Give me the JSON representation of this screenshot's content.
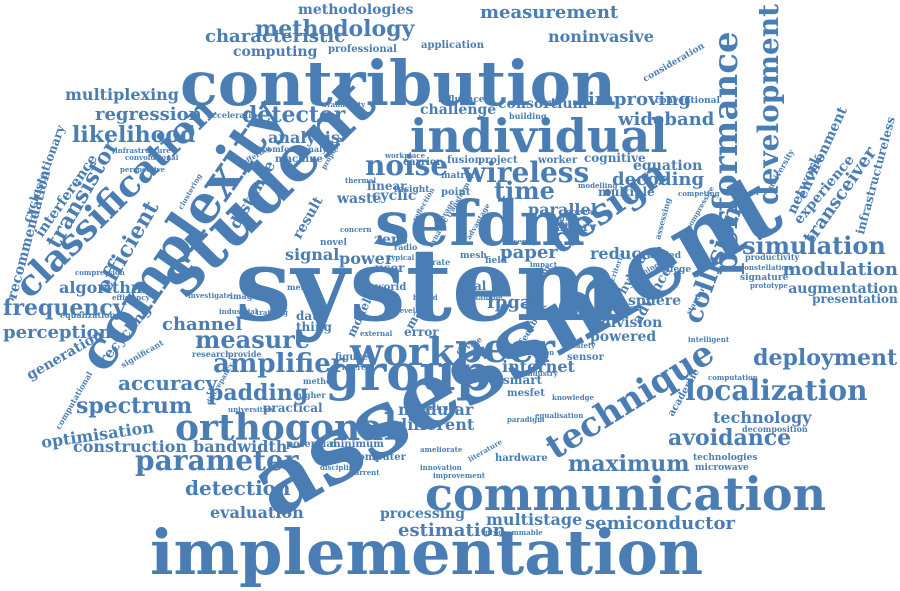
{
  "color": "#4a7db4",
  "words": [
    {
      "text": "assessment",
      "weight": 100
    },
    {
      "text": "system",
      "weight": 96
    },
    {
      "text": "implementation",
      "weight": 88
    },
    {
      "text": "contribution",
      "weight": 84
    },
    {
      "text": "student",
      "weight": 80
    },
    {
      "text": "communication",
      "weight": 76
    },
    {
      "text": "individual",
      "weight": 72
    },
    {
      "text": "complexity",
      "weight": 70
    },
    {
      "text": "sefdm",
      "weight": 70
    },
    {
      "text": "group",
      "weight": 66
    },
    {
      "text": "work",
      "weight": 62
    },
    {
      "text": "peer",
      "weight": 62
    },
    {
      "text": "technique",
      "weight": 58
    },
    {
      "text": "performance",
      "weight": 56
    },
    {
      "text": "classification",
      "weight": 56
    },
    {
      "text": "orthogonal",
      "weight": 54
    },
    {
      "text": "development",
      "weight": 52
    },
    {
      "text": "design",
      "weight": 52
    },
    {
      "text": "collision",
      "weight": 46
    },
    {
      "text": "noise",
      "weight": 46
    },
    {
      "text": "wireless",
      "weight": 44
    },
    {
      "text": "parameter",
      "weight": 42
    },
    {
      "text": "localization",
      "weight": 42
    },
    {
      "text": "methodology",
      "weight": 38
    },
    {
      "text": "amplifier",
      "weight": 38
    },
    {
      "text": "simulation",
      "weight": 38
    },
    {
      "text": "frequency",
      "weight": 36
    },
    {
      "text": "measure",
      "weight": 36
    },
    {
      "text": "deployment",
      "weight": 34
    },
    {
      "text": "maximum",
      "weight": 34
    },
    {
      "text": "avoidance",
      "weight": 34
    },
    {
      "text": "detector",
      "weight": 34
    },
    {
      "text": "likelihood",
      "weight": 34
    },
    {
      "text": "spectrum",
      "weight": 34
    },
    {
      "text": "time",
      "weight": 34
    },
    {
      "text": "efficient",
      "weight": 32
    },
    {
      "text": "transistor",
      "weight": 32
    },
    {
      "text": "padding",
      "weight": 30
    },
    {
      "text": "accuracy",
      "weight": 30
    },
    {
      "text": "semiconductor",
      "weight": 30
    },
    {
      "text": "detection",
      "weight": 30
    },
    {
      "text": "characteristic",
      "weight": 28
    },
    {
      "text": "measurement",
      "weight": 28
    },
    {
      "text": "perception",
      "weight": 28
    },
    {
      "text": "improving",
      "weight": 28
    },
    {
      "text": "wideband",
      "weight": 28
    },
    {
      "text": "modulation",
      "weight": 28
    },
    {
      "text": "transceiver",
      "weight": 28
    },
    {
      "text": "regression",
      "weight": 26
    },
    {
      "text": "multiplexing",
      "weight": 26
    },
    {
      "text": "channel",
      "weight": 26
    },
    {
      "text": "estimation",
      "weight": 26
    },
    {
      "text": "evaluation",
      "weight": 26
    },
    {
      "text": "technology",
      "weight": 26
    },
    {
      "text": "construction",
      "weight": 24
    },
    {
      "text": "bandwidth",
      "weight": 24
    },
    {
      "text": "optimisation",
      "weight": 24
    },
    {
      "text": "generation",
      "weight": 24
    },
    {
      "text": "interference",
      "weight": 24
    },
    {
      "text": "recommendation",
      "weight": 24
    },
    {
      "text": "cyclostationary",
      "weight": 22
    },
    {
      "text": "noninvasive",
      "weight": 24
    },
    {
      "text": "methodologies",
      "weight": 22
    },
    {
      "text": "decoding",
      "weight": 24
    },
    {
      "text": "equation",
      "weight": 22
    },
    {
      "text": "analysis",
      "weight": 22
    },
    {
      "text": "distance",
      "weight": 22
    },
    {
      "text": "computing",
      "weight": 20
    },
    {
      "text": "algorithm",
      "weight": 20
    },
    {
      "text": "fpga",
      "weight": 22
    },
    {
      "text": "internet",
      "weight": 20
    },
    {
      "text": "multistage",
      "weight": 20
    },
    {
      "text": "modular",
      "weight": 20
    },
    {
      "text": "different",
      "weight": 20
    },
    {
      "text": "processing",
      "weight": 18
    },
    {
      "text": "parallel",
      "weight": 18
    },
    {
      "text": "reduced",
      "weight": 20
    },
    {
      "text": "division",
      "weight": 18
    },
    {
      "text": "powered",
      "weight": 18
    },
    {
      "text": "sphere",
      "weight": 18
    },
    {
      "text": "advanced",
      "weight": 18
    },
    {
      "text": "environment",
      "weight": 18
    },
    {
      "text": "experience",
      "weight": 18
    },
    {
      "text": "network",
      "weight": 18
    },
    {
      "text": "infrastructureless",
      "weight": 16
    },
    {
      "text": "augmentation",
      "weight": 18
    },
    {
      "text": "presentation",
      "weight": 16
    },
    {
      "text": "consortium",
      "weight": 18
    },
    {
      "text": "challenge",
      "weight": 18
    },
    {
      "text": "recycling",
      "weight": 18
    },
    {
      "text": "signal",
      "weight": 18
    },
    {
      "text": "power",
      "weight": 18
    },
    {
      "text": "zero",
      "weight": 18
    },
    {
      "text": "paper",
      "weight": 20
    },
    {
      "text": "result",
      "weight": 18
    },
    {
      "text": "cyclic",
      "weight": 18
    },
    {
      "text": "waste",
      "weight": 18
    },
    {
      "text": "linear",
      "weight": 16
    },
    {
      "text": "multiple",
      "weight": 16
    },
    {
      "text": "cognitive",
      "weight": 16
    },
    {
      "text": "battery",
      "weight": 16
    },
    {
      "text": "model",
      "weight": 16
    },
    {
      "text": "data",
      "weight": 16
    },
    {
      "text": "thing",
      "weight": 16
    },
    {
      "text": "error",
      "weight": 16
    },
    {
      "text": "smart",
      "weight": 16
    },
    {
      "text": "practical",
      "weight": 16
    },
    {
      "text": "potential",
      "weight": 14
    },
    {
      "text": "minimum",
      "weight": 14
    },
    {
      "text": "professional",
      "weight": 14
    },
    {
      "text": "application",
      "weight": 14
    },
    {
      "text": "project",
      "weight": 14
    },
    {
      "text": "machine",
      "weight": 14
    },
    {
      "text": "hybrid",
      "weight": 14
    },
    {
      "text": "mark",
      "weight": 14
    },
    {
      "text": "sensor",
      "weight": 14
    },
    {
      "text": "figure",
      "weight": 14
    },
    {
      "text": "real",
      "weight": 14
    },
    {
      "text": "mesfet",
      "weight": 14
    },
    {
      "text": "academic",
      "weight": 14
    },
    {
      "text": "hardware",
      "weight": 14
    },
    {
      "text": "computer",
      "weight": 12
    },
    {
      "text": "microwave",
      "weight": 12
    },
    {
      "text": "technologies",
      "weight": 12
    },
    {
      "text": "decomposition",
      "weight": 12
    },
    {
      "text": "consideration",
      "weight": 12
    },
    {
      "text": "conventional",
      "weight": 12
    },
    {
      "text": "influence",
      "weight": 12
    },
    {
      "text": "building",
      "weight": 12
    },
    {
      "text": "carrier",
      "weight": 12
    },
    {
      "text": "fusion",
      "weight": 12
    },
    {
      "text": "worker",
      "weight": 12
    },
    {
      "text": "matrix",
      "weight": 12
    },
    {
      "text": "point",
      "weight": 12
    },
    {
      "text": "insight",
      "weight": 12
    },
    {
      "text": "user",
      "weight": 14
    },
    {
      "text": "novel",
      "weight": 12
    },
    {
      "text": "world",
      "weight": 12
    },
    {
      "text": "field",
      "weight": 12
    },
    {
      "text": "mesh",
      "weight": 12
    },
    {
      "text": "london",
      "weight": 12
    },
    {
      "text": "denied",
      "weight": 12
    },
    {
      "text": "college",
      "weight": 12
    },
    {
      "text": "signature",
      "weight": 12
    },
    {
      "text": "productivity",
      "weight": 12
    },
    {
      "text": "university",
      "weight": 12
    },
    {
      "text": "constellation",
      "weight": 12
    },
    {
      "text": "prototype",
      "weight": 12
    },
    {
      "text": "intelligent",
      "weight": 12
    },
    {
      "text": "equalization",
      "weight": 12
    },
    {
      "text": "efficiency",
      "weight": 12
    },
    {
      "text": "convolutional",
      "weight": 12
    },
    {
      "text": "perspective",
      "weight": 12
    },
    {
      "text": "infrastructure",
      "weight": 12
    },
    {
      "text": "accelerating",
      "weight": 12
    },
    {
      "text": "comfort",
      "weight": 12
    },
    {
      "text": "analytic",
      "weight": 12
    },
    {
      "text": "availability",
      "weight": 12
    },
    {
      "text": "clustering",
      "weight": 12
    },
    {
      "text": "offering",
      "weight": 12
    },
    {
      "text": "significant",
      "weight": 12
    },
    {
      "text": "research",
      "weight": 12
    },
    {
      "text": "provide",
      "weight": 12
    },
    {
      "text": "computational",
      "weight": 12
    },
    {
      "text": "method",
      "weight": 12
    },
    {
      "text": "higher",
      "weight": 12
    },
    {
      "text": "universities",
      "weight": 12
    },
    {
      "text": "discipline",
      "weight": 12
    },
    {
      "text": "current",
      "weight": 12
    },
    {
      "text": "computation",
      "weight": 12
    },
    {
      "text": "equalisation",
      "weight": 12
    },
    {
      "text": "ameliorate",
      "weight": 12
    },
    {
      "text": "literature",
      "weight": 12
    },
    {
      "text": "programmable",
      "weight": 12
    },
    {
      "text": "improvement",
      "weight": 12
    },
    {
      "text": "metal",
      "weight": 12
    },
    {
      "text": "image",
      "weight": 12
    },
    {
      "text": "industrial",
      "weight": 12
    },
    {
      "text": "training",
      "weight": 12
    },
    {
      "text": "investigate",
      "weight": 12
    },
    {
      "text": "feedback",
      "weight": 12
    },
    {
      "text": "execution",
      "weight": 12
    },
    {
      "text": "interest",
      "weight": 12
    },
    {
      "text": "device",
      "weight": 12
    },
    {
      "text": "radio",
      "weight": 12
    },
    {
      "text": "competing",
      "weight": 12
    },
    {
      "text": "teaching",
      "weight": 12
    },
    {
      "text": "modelling",
      "weight": 12
    },
    {
      "text": "present",
      "weight": 12
    },
    {
      "text": "problem",
      "weight": 12
    },
    {
      "text": "impact",
      "weight": 12
    },
    {
      "text": "standard",
      "weight": 12
    },
    {
      "text": "paradigm",
      "weight": 12
    },
    {
      "text": "knowledge",
      "weight": 12
    },
    {
      "text": "rate",
      "weight": 12
    },
    {
      "text": "thermal",
      "weight": 12
    },
    {
      "text": "concern",
      "weight": 12
    },
    {
      "text": "compression",
      "weight": 12
    },
    {
      "text": "discrepancy",
      "weight": 12
    },
    {
      "text": "industry",
      "weight": 12
    },
    {
      "text": "innovation",
      "weight": 12
    },
    {
      "text": "external",
      "weight": 12
    },
    {
      "text": "assessing",
      "weight": 12
    },
    {
      "text": "introduction",
      "weight": 12
    },
    {
      "text": "peercriteria",
      "weight": 12
    },
    {
      "text": "typical",
      "weight": 12
    },
    {
      "text": "particular",
      "weight": 12
    },
    {
      "text": "safety",
      "weight": 12
    },
    {
      "text": "bound",
      "weight": 12
    },
    {
      "text": "recently",
      "weight": 12
    },
    {
      "text": "example",
      "weight": 12
    },
    {
      "text": "effect",
      "weight": 12
    },
    {
      "text": "level",
      "weight": 12
    },
    {
      "text": "table",
      "weight": 12
    },
    {
      "text": "proposed",
      "weight": 12
    },
    {
      "text": "compressive",
      "weight": 12
    },
    {
      "text": "transform",
      "weight": 12
    },
    {
      "text": "workplace",
      "weight": 12
    },
    {
      "text": "advantage",
      "weight": 12
    },
    {
      "text": "reflection",
      "weight": 12
    },
    {
      "text": "coverage",
      "weight": 12
    },
    {
      "text": "dynamic",
      "weight": 12
    }
  ]
}
